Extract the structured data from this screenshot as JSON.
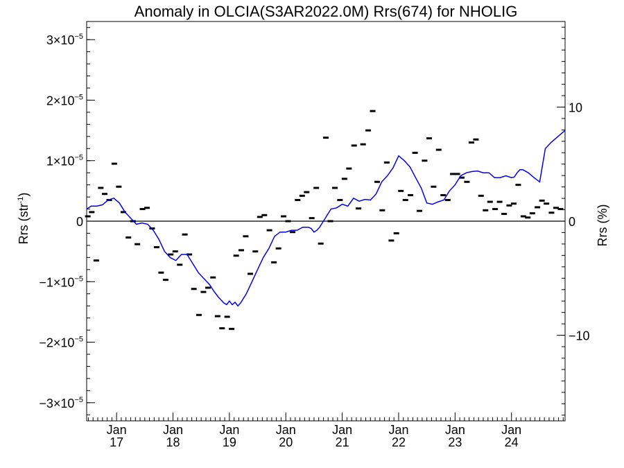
{
  "chart_data": {
    "type": "scatter",
    "title": "Anomaly in OLCIA(S3AR2022.0M) Rrs(674) for NHOLIG",
    "ylabel_left": {
      "base": "Rrs (str",
      "sup": "-1",
      "tail": ")"
    },
    "ylabel_right": "Rrs (%)",
    "ylim_left": [
      -3.3e-05,
      3.3e-05
    ],
    "ylim_right": [
      -17.5,
      17.5
    ],
    "left_ticks": [
      {
        "value": 3e-05,
        "mant": "3×10",
        "exp": "−5"
      },
      {
        "value": 2e-05,
        "mant": "2×10",
        "exp": "−5"
      },
      {
        "value": 1e-05,
        "mant": "1×10",
        "exp": "−5"
      },
      {
        "value": 0,
        "mant": "0",
        "exp": ""
      },
      {
        "value": -1e-05,
        "mant": "−1×10",
        "exp": "−5"
      },
      {
        "value": -2e-05,
        "mant": "−2×10",
        "exp": "−5"
      },
      {
        "value": -3e-05,
        "mant": "−3×10",
        "exp": "−5"
      }
    ],
    "right_ticks": [
      {
        "value": 10,
        "label": "10"
      },
      {
        "value": 0,
        "label": "0"
      },
      {
        "value": -10,
        "label": "−10"
      }
    ],
    "x_range_years": [
      2016.47,
      2024.95
    ],
    "x_ticks": [
      {
        "value": 2017,
        "month": "Jan",
        "year": "17"
      },
      {
        "value": 2018,
        "month": "Jan",
        "year": "18"
      },
      {
        "value": 2019,
        "month": "Jan",
        "year": "19"
      },
      {
        "value": 2020,
        "month": "Jan",
        "year": "20"
      },
      {
        "value": 2021,
        "month": "Jan",
        "year": "21"
      },
      {
        "value": 2022,
        "month": "Jan",
        "year": "22"
      },
      {
        "value": 2023,
        "month": "Jan",
        "year": "23"
      },
      {
        "value": 2024,
        "month": "Jan",
        "year": "24"
      }
    ],
    "zero_line": true,
    "series": [
      {
        "kind": "markers",
        "color": "#000000",
        "x": [
          2016.49,
          2016.56,
          2016.64,
          2016.72,
          2016.79,
          2016.87,
          2016.96,
          2017.04,
          2017.12,
          2017.21,
          2017.29,
          2017.37,
          2017.46,
          2017.54,
          2017.63,
          2017.71,
          2017.79,
          2017.87,
          2017.96,
          2018.04,
          2018.12,
          2018.21,
          2018.29,
          2018.37,
          2018.46,
          2018.54,
          2018.62,
          2018.71,
          2018.79,
          2018.87,
          2018.96,
          2019.04,
          2019.12,
          2019.21,
          2019.29,
          2019.37,
          2019.46,
          2019.54,
          2019.62,
          2019.71,
          2019.79,
          2019.87,
          2019.96,
          2020.04,
          2020.12,
          2020.21,
          2020.29,
          2020.37,
          2020.46,
          2020.54,
          2020.62,
          2020.71,
          2020.79,
          2020.87,
          2020.96,
          2021.04,
          2021.12,
          2021.21,
          2021.29,
          2021.37,
          2021.46,
          2021.54,
          2021.62,
          2021.71,
          2021.79,
          2021.87,
          2021.96,
          2022.04,
          2022.12,
          2022.21,
          2022.29,
          2022.37,
          2022.46,
          2022.54,
          2022.62,
          2022.71,
          2022.79,
          2022.87,
          2022.96,
          2023.04,
          2023.12,
          2023.21,
          2023.29,
          2023.37,
          2023.46,
          2023.54,
          2023.62,
          2023.71,
          2023.79,
          2023.87,
          2023.96,
          2024.04,
          2024.12,
          2024.21,
          2024.29,
          2024.37,
          2024.46,
          2024.54,
          2024.62,
          2024.71,
          2024.79,
          2024.87
        ],
        "y": [
          8e-07,
          1.5e-06,
          -6.5e-06,
          5.5e-06,
          4.5e-06,
          3.5e-06,
          9.5e-06,
          5.7e-06,
          1.5e-06,
          -2.7e-06,
          0.0,
          -3.8e-06,
          2e-06,
          2.2e-06,
          -1.2e-06,
          -4.3e-06,
          -8.5e-06,
          -9.7e-06,
          -5.5e-06,
          -5e-06,
          -7.2e-06,
          -2.2e-06,
          -5.5e-06,
          -1.12e-05,
          -1.55e-05,
          -1.17e-05,
          -1.1e-05,
          -9.3e-06,
          -1.57e-05,
          -1.77e-05,
          -1.58e-05,
          -1.78e-05,
          -5.7e-06,
          -4.8e-06,
          -2.5e-06,
          -8.7e-06,
          -5e-06,
          7e-07,
          1e-06,
          -1.5e-06,
          -6.8e-06,
          -4.5e-06,
          8e-07,
          0.0,
          -1.8e-06,
          3.5e-06,
          4.2e-06,
          4.8e-06,
          5e-07,
          5.5e-06,
          -3.7e-06,
          1.38e-05,
          0.0,
          5.5e-06,
          3.5e-06,
          7e-06,
          8.7e-06,
          1.25e-05,
          2.1e-06,
          1.27e-05,
          1.5e-05,
          1.82e-05,
          6.5e-06,
          1.8e-06,
          9.7e-06,
          -3.2e-06,
          -2e-06,
          5e-06,
          3.5e-06,
          4.3e-06,
          1.13e-05,
          1.7e-06,
          1e-05,
          1.37e-05,
          5.7e-06,
          1.18e-05,
          4.3e-06,
          3.5e-06,
          7.8e-06,
          7.8e-06,
          7.2e-06,
          6.5e-06,
          1.3e-05,
          1.35e-05,
          4.2e-06,
          1.8e-06,
          3.2e-06,
          2e-06,
          3.2e-06,
          1.2e-06,
          2.6e-06,
          2.9e-06,
          6e-06,
          8e-07,
          6e-07,
          1.3e-06,
          2.3e-06,
          3.4e-06,
          2.9e-06,
          1.4e-06,
          2.2e-06,
          2e-06
        ]
      },
      {
        "kind": "line",
        "color": "#0000ee",
        "x": [
          2016.47,
          2016.55,
          2016.65,
          2016.75,
          2016.85,
          2016.95,
          2017.05,
          2017.15,
          2017.25,
          2017.35,
          2017.45,
          2017.55,
          2017.65,
          2017.75,
          2017.85,
          2017.95,
          2018.05,
          2018.15,
          2018.25,
          2018.35,
          2018.45,
          2018.55,
          2018.65,
          2018.72,
          2018.8,
          2018.85,
          2018.9,
          2018.95,
          2019.0,
          2019.05,
          2019.1,
          2019.15,
          2019.2,
          2019.3,
          2019.4,
          2019.5,
          2019.6,
          2019.7,
          2019.8,
          2019.9,
          2020.0,
          2020.1,
          2020.2,
          2020.3,
          2020.4,
          2020.45,
          2020.5,
          2020.55,
          2020.6,
          2020.7,
          2020.8,
          2020.9,
          2021.0,
          2021.1,
          2021.2,
          2021.3,
          2021.4,
          2021.5,
          2021.6,
          2021.7,
          2021.8,
          2021.9,
          2022.0,
          2022.1,
          2022.2,
          2022.3,
          2022.4,
          2022.5,
          2022.6,
          2022.7,
          2022.8,
          2022.9,
          2023.0,
          2023.1,
          2023.2,
          2023.3,
          2023.4,
          2023.5,
          2023.6,
          2023.7,
          2023.8,
          2023.9,
          2024.0,
          2024.05,
          2024.1,
          2024.15,
          2024.2,
          2024.3,
          2024.4,
          2024.5,
          2024.6,
          2024.7,
          2024.8,
          2024.95
        ],
        "y": [
          2e-06,
          2.5e-06,
          2.5e-06,
          2.7e-06,
          3.5e-06,
          3.8e-06,
          3e-06,
          1.5e-06,
          5e-07,
          -5e-07,
          -3e-07,
          -5e-07,
          -1.5e-06,
          -3e-06,
          -5e-06,
          -6e-06,
          -6.5e-06,
          -5.5e-06,
          -5.5e-06,
          -7e-06,
          -8.5e-06,
          -9.5e-06,
          -1.05e-05,
          -1.15e-05,
          -1.25e-05,
          -1.3e-05,
          -1.35e-05,
          -1.38e-05,
          -1.32e-05,
          -1.38e-05,
          -1.34e-05,
          -1.4e-05,
          -1.35e-05,
          -1.2e-05,
          -1e-05,
          -8e-06,
          -6e-06,
          -4.5e-06,
          -2.5e-06,
          -1.8e-06,
          -1.8e-06,
          -1.5e-06,
          -1.5e-06,
          -1e-06,
          -1e-06,
          -1.2e-06,
          -1.8e-06,
          -1.5e-06,
          -1e-06,
          5e-07,
          2e-06,
          2.2e-06,
          2.8e-06,
          2.5e-06,
          3.8e-06,
          3.3e-06,
          3.6e-06,
          3.5e-06,
          4.5e-06,
          6.5e-06,
          7.5e-06,
          8.8e-06,
          1.08e-05,
          1e-05,
          9e-06,
          7.2e-06,
          5.5e-06,
          3e-06,
          2.8e-06,
          3.2e-06,
          3.5e-06,
          5e-06,
          6e-06,
          7.5e-06,
          8e-06,
          8.2e-06,
          8.3e-06,
          8e-06,
          8e-06,
          7.2e-06,
          7.2e-06,
          7.5e-06,
          7.2e-06,
          7.3e-06,
          8e-06,
          8.5e-06,
          8.5e-06,
          8e-06,
          7.2e-06,
          6.5e-06,
          1.2e-05,
          1.3e-05,
          1.38e-05,
          1.5e-05
        ]
      }
    ]
  }
}
